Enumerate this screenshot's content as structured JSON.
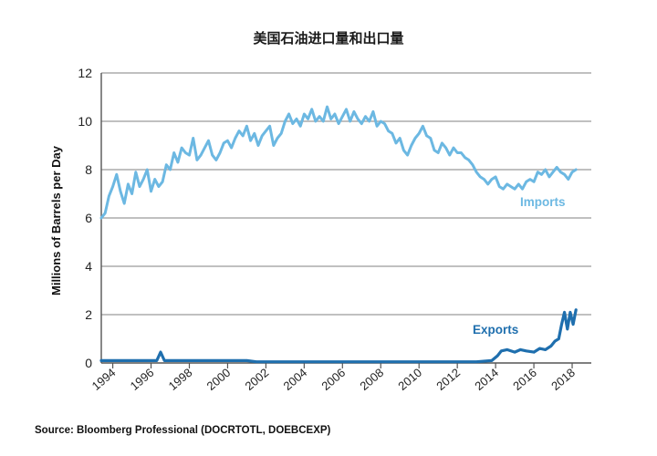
{
  "chart_data": {
    "type": "line",
    "title": "美国石油进口量和出口量",
    "ylabel": "Millions of Barrels per Day",
    "xlabel": "",
    "xlim": [
      1993.4,
      2019.0
    ],
    "ylim": [
      0,
      12
    ],
    "y_ticks": [
      0,
      2,
      4,
      6,
      8,
      10,
      12
    ],
    "x_ticks": [
      1994,
      1996,
      1998,
      2000,
      2002,
      2004,
      2006,
      2008,
      2010,
      2012,
      2014,
      2016,
      2018
    ],
    "x_tick_labels": [
      "1994",
      "1996",
      "1998",
      "2000",
      "2002",
      "2004",
      "2006",
      "2008",
      "2010",
      "2012",
      "2014",
      "2016",
      "2018"
    ],
    "grid": true,
    "series": [
      {
        "name": "Imports",
        "color": "#6cb8e2",
        "x": [
          1993.4,
          1993.6,
          1993.8,
          1994.0,
          1994.2,
          1994.4,
          1994.6,
          1994.8,
          1995.0,
          1995.2,
          1995.4,
          1995.6,
          1995.8,
          1996.0,
          1996.2,
          1996.4,
          1996.6,
          1996.8,
          1997.0,
          1997.2,
          1997.4,
          1997.6,
          1997.8,
          1998.0,
          1998.2,
          1998.4,
          1998.6,
          1998.8,
          1999.0,
          1999.2,
          1999.4,
          1999.6,
          1999.8,
          2000.0,
          2000.2,
          2000.4,
          2000.6,
          2000.8,
          2001.0,
          2001.2,
          2001.4,
          2001.6,
          2001.8,
          2002.0,
          2002.2,
          2002.4,
          2002.6,
          2002.8,
          2003.0,
          2003.2,
          2003.4,
          2003.6,
          2003.8,
          2004.0,
          2004.2,
          2004.4,
          2004.6,
          2004.8,
          2005.0,
          2005.2,
          2005.4,
          2005.6,
          2005.8,
          2006.0,
          2006.2,
          2006.4,
          2006.6,
          2006.8,
          2007.0,
          2007.2,
          2007.4,
          2007.6,
          2007.8,
          2008.0,
          2008.2,
          2008.4,
          2008.6,
          2008.8,
          2009.0,
          2009.2,
          2009.4,
          2009.6,
          2009.8,
          2010.0,
          2010.2,
          2010.4,
          2010.6,
          2010.8,
          2011.0,
          2011.2,
          2011.4,
          2011.6,
          2011.8,
          2012.0,
          2012.2,
          2012.4,
          2012.6,
          2012.8,
          2013.0,
          2013.2,
          2013.4,
          2013.6,
          2013.8,
          2014.0,
          2014.2,
          2014.4,
          2014.6,
          2014.8,
          2015.0,
          2015.2,
          2015.4,
          2015.6,
          2015.8,
          2016.0,
          2016.2,
          2016.4,
          2016.6,
          2016.8,
          2017.0,
          2017.2,
          2017.4,
          2017.6,
          2017.8,
          2018.0,
          2018.2
        ],
        "values": [
          6.0,
          6.2,
          6.9,
          7.3,
          7.8,
          7.1,
          6.6,
          7.4,
          7.0,
          7.9,
          7.3,
          7.6,
          8.0,
          7.1,
          7.6,
          7.3,
          7.5,
          8.2,
          8.0,
          8.7,
          8.3,
          8.9,
          8.7,
          8.6,
          9.3,
          8.4,
          8.6,
          8.9,
          9.2,
          8.6,
          8.4,
          8.7,
          9.1,
          9.2,
          8.9,
          9.3,
          9.6,
          9.4,
          9.8,
          9.2,
          9.5,
          9.0,
          9.4,
          9.6,
          9.8,
          9.0,
          9.3,
          9.5,
          10.0,
          10.3,
          9.9,
          10.1,
          9.8,
          10.3,
          10.1,
          10.5,
          10.0,
          10.2,
          10.0,
          10.6,
          10.1,
          10.3,
          9.9,
          10.2,
          10.5,
          10.0,
          10.4,
          10.1,
          9.9,
          10.2,
          10.0,
          10.4,
          9.8,
          10.0,
          9.9,
          9.6,
          9.5,
          9.1,
          9.3,
          8.8,
          8.6,
          9.0,
          9.3,
          9.5,
          9.8,
          9.4,
          9.3,
          8.8,
          8.7,
          9.1,
          8.9,
          8.6,
          8.9,
          8.7,
          8.7,
          8.5,
          8.4,
          8.2,
          7.9,
          7.7,
          7.6,
          7.4,
          7.6,
          7.7,
          7.3,
          7.2,
          7.4,
          7.3,
          7.2,
          7.4,
          7.2,
          7.5,
          7.6,
          7.5,
          7.9,
          7.8,
          8.0,
          7.7,
          7.9,
          8.1,
          7.9,
          7.8,
          7.6,
          7.9,
          8.0
        ]
      },
      {
        "name": "Exports",
        "color": "#1f6fae",
        "x": [
          1993.4,
          1994.0,
          1995.0,
          1996.0,
          1996.3,
          1996.5,
          1996.7,
          1997.0,
          1998.0,
          1999.0,
          2000.0,
          2001.0,
          2001.5,
          2002.0,
          2004.0,
          2006.0,
          2008.0,
          2010.0,
          2012.0,
          2013.0,
          2013.8,
          2014.1,
          2014.3,
          2014.6,
          2015.0,
          2015.3,
          2015.6,
          2016.0,
          2016.3,
          2016.6,
          2016.9,
          2017.1,
          2017.3,
          2017.45,
          2017.6,
          2017.75,
          2017.9,
          2018.05,
          2018.2
        ],
        "values": [
          0.1,
          0.1,
          0.1,
          0.1,
          0.1,
          0.45,
          0.1,
          0.1,
          0.1,
          0.1,
          0.1,
          0.1,
          0.05,
          0.05,
          0.05,
          0.05,
          0.05,
          0.05,
          0.05,
          0.05,
          0.1,
          0.3,
          0.5,
          0.55,
          0.45,
          0.55,
          0.5,
          0.45,
          0.6,
          0.55,
          0.7,
          0.9,
          1.0,
          1.6,
          2.1,
          1.4,
          2.1,
          1.6,
          2.2
        ]
      }
    ],
    "annotations": [
      {
        "text": "Imports",
        "series": "Imports"
      },
      {
        "text": "Exports",
        "series": "Exports"
      }
    ],
    "source": "Source:  Bloomberg Professional (DOCRTOTL, DOEBCEXP)"
  }
}
